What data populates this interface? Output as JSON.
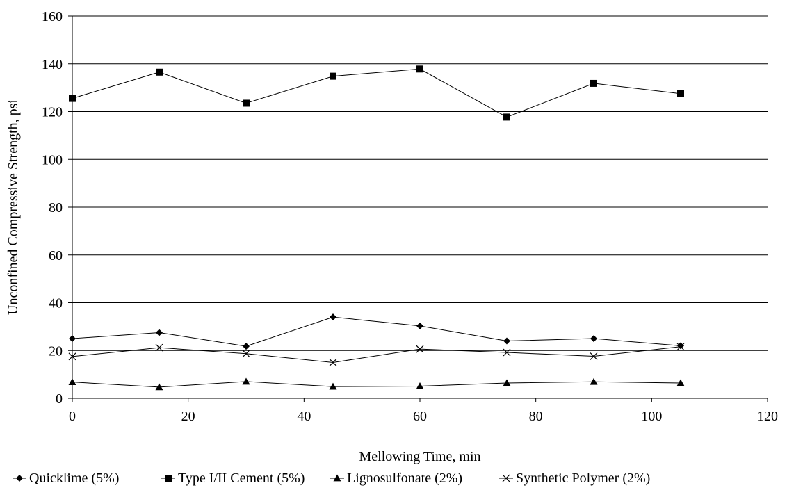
{
  "chart_data": {
    "type": "line",
    "title": "",
    "xlabel": "Mellowing Time, min",
    "ylabel": "Unconfined Compressive Strength, psi",
    "xlim": [
      0,
      120
    ],
    "ylim": [
      0,
      160
    ],
    "xticks": [
      0,
      20,
      40,
      60,
      80,
      100,
      120
    ],
    "yticks": [
      0,
      20,
      40,
      60,
      80,
      100,
      120,
      140,
      160
    ],
    "grid": "horizontal",
    "legend_position": "bottom",
    "x": [
      0,
      15,
      30,
      45,
      60,
      75,
      90,
      105
    ],
    "series": [
      {
        "name": "Quicklime (5%)",
        "marker": "diamond",
        "values": [
          25.0,
          27.5,
          21.8,
          34.0,
          30.3,
          24.0,
          25.0,
          22.0
        ]
      },
      {
        "name": "Type I/II Cement (5%)",
        "marker": "square",
        "values": [
          125.5,
          136.5,
          123.5,
          134.8,
          137.8,
          117.7,
          131.8,
          127.5
        ]
      },
      {
        "name": "Lignosulfonate (2%)",
        "marker": "triangle",
        "values": [
          6.8,
          4.7,
          7.0,
          4.9,
          5.1,
          6.4,
          6.9,
          6.4
        ]
      },
      {
        "name": "Synthetic Polymer (2%)",
        "marker": "x",
        "values": [
          17.5,
          21.2,
          18.7,
          15.0,
          20.6,
          19.2,
          17.6,
          21.6
        ]
      }
    ]
  }
}
